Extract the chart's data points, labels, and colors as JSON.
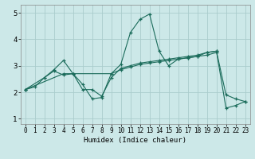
{
  "xlabel": "Humidex (Indice chaleur)",
  "background_color": "#cce8e8",
  "grid_color": "#aacccc",
  "line_color": "#1a6b5a",
  "xlim": [
    -0.5,
    23.5
  ],
  "ylim": [
    0.8,
    5.3
  ],
  "xticks": [
    0,
    1,
    2,
    3,
    4,
    5,
    6,
    7,
    8,
    9,
    10,
    11,
    12,
    13,
    14,
    15,
    16,
    17,
    18,
    19,
    20,
    21,
    22,
    23
  ],
  "yticks": [
    1,
    2,
    3,
    4,
    5
  ],
  "lines": [
    {
      "x": [
        0,
        1,
        2,
        3,
        4,
        5,
        6,
        7,
        8,
        9,
        10,
        11,
        12,
        13,
        14,
        15,
        16,
        17,
        18,
        19,
        20,
        21,
        22,
        23
      ],
      "y": [
        2.1,
        2.2,
        2.55,
        2.8,
        2.65,
        2.7,
        2.3,
        1.75,
        1.8,
        2.7,
        3.05,
        4.25,
        4.75,
        4.95,
        3.55,
        3.0,
        3.25,
        3.3,
        3.35,
        3.5,
        3.55,
        1.4,
        1.5,
        1.65
      ]
    },
    {
      "x": [
        0,
        2,
        3,
        4,
        5,
        6,
        7,
        8,
        9,
        10,
        11,
        12,
        13,
        14,
        15,
        16,
        17,
        18,
        19,
        20,
        21,
        22,
        23
      ],
      "y": [
        2.1,
        2.55,
        2.85,
        3.2,
        2.7,
        2.1,
        2.1,
        1.85,
        2.55,
        2.9,
        3.0,
        3.1,
        3.15,
        3.2,
        3.25,
        3.3,
        3.35,
        3.4,
        3.5,
        3.55,
        1.9,
        1.75,
        1.65
      ]
    },
    {
      "x": [
        0,
        4,
        5,
        9,
        10,
        11,
        12,
        13,
        14,
        15,
        16,
        17,
        18,
        19,
        20
      ],
      "y": [
        2.1,
        2.7,
        2.7,
        2.7,
        2.85,
        2.95,
        3.05,
        3.1,
        3.15,
        3.2,
        3.25,
        3.3,
        3.35,
        3.4,
        3.5
      ]
    }
  ],
  "xlabel_fontsize": 6.5,
  "tick_fontsize": 5.5,
  "ytick_fontsize": 6.5
}
